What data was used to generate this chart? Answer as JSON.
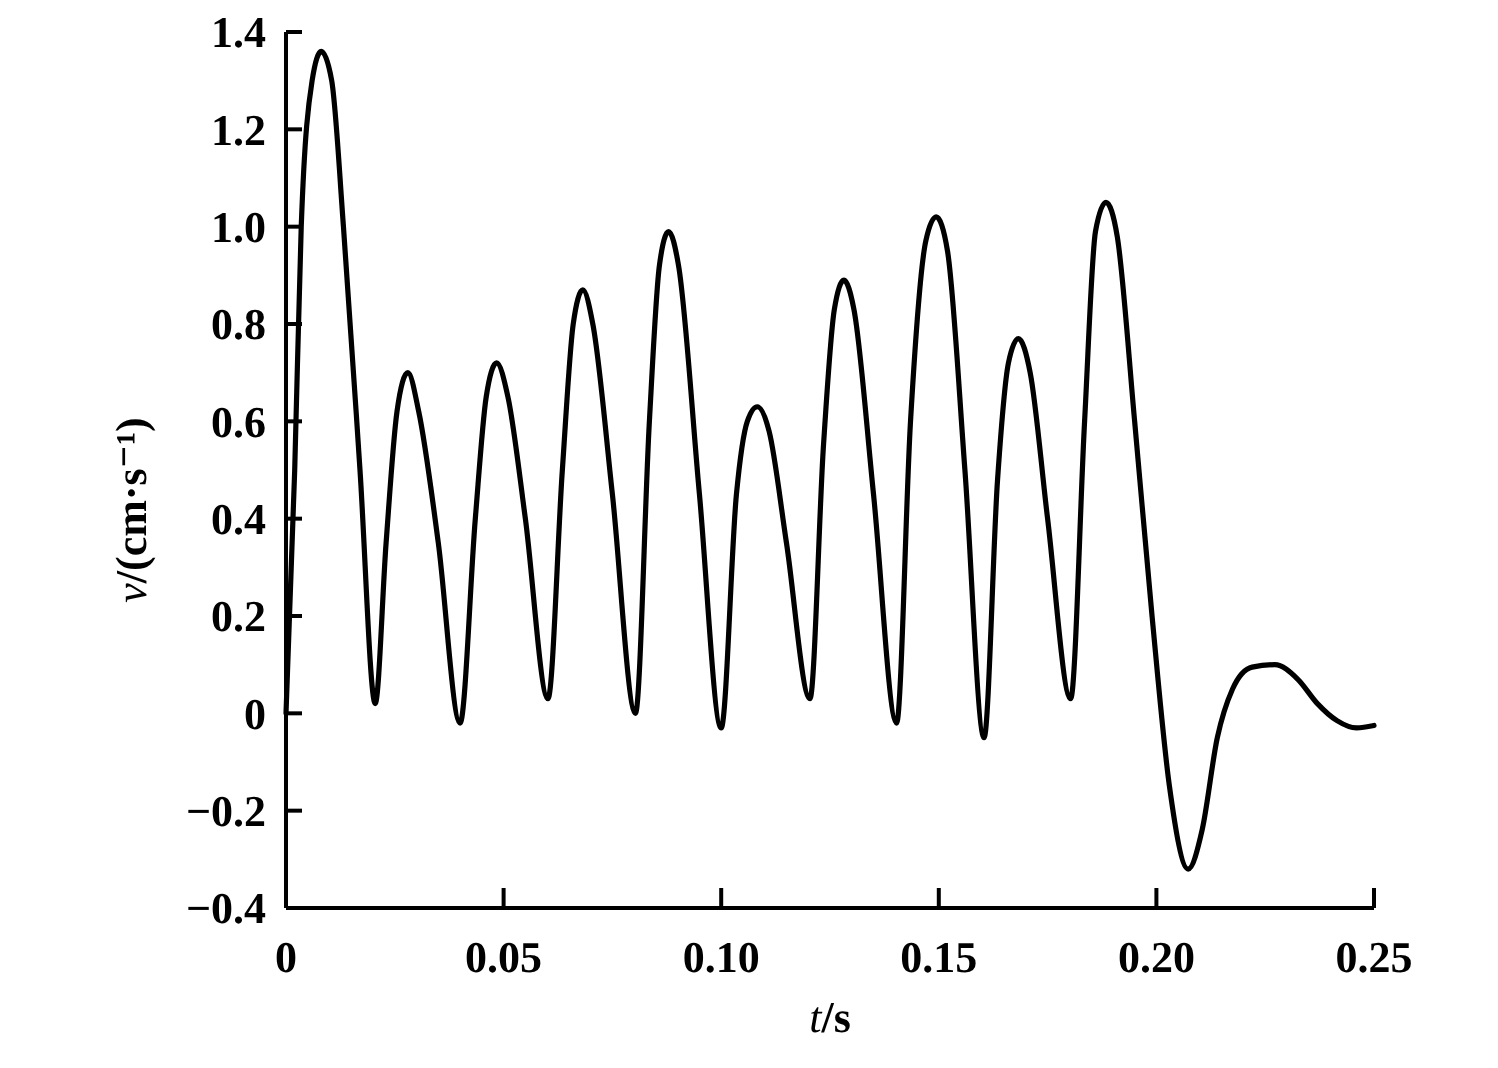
{
  "chart_data": {
    "type": "line",
    "xlabel": "t/s",
    "ylabel": "v/(cm·s⁻¹)",
    "xlim": [
      0,
      0.25
    ],
    "xticks": [
      0,
      0.05,
      {
        "value": 0.1,
        "label": "0.10"
      },
      0.15,
      {
        "value": 0.2,
        "label": "0.20"
      },
      0.25
    ],
    "ylim": [
      -0.4,
      1.4
    ],
    "yticks": [
      {
        "value": -0.4,
        "label": "−0.4"
      },
      {
        "value": -0.2,
        "label": "−0.2"
      },
      0,
      0.2,
      0.4,
      0.6,
      0.8,
      {
        "value": 1,
        "label": "1.0"
      },
      1.2,
      1.4
    ],
    "series": [
      {
        "color": "#000000",
        "x": [
          0,
          0.002,
          0.0035,
          0.006,
          0.0081,
          0.0105,
          0.0132,
          0.017,
          0.0205,
          0.023,
          0.0255,
          0.028,
          0.0305,
          0.035,
          0.04,
          0.0435,
          0.046,
          0.0484,
          0.051,
          0.055,
          0.0602,
          0.0635,
          0.066,
          0.0682,
          0.0705,
          0.075,
          0.0803,
          0.0835,
          0.0858,
          0.0879,
          0.0902,
          0.095,
          0.1,
          0.1035,
          0.106,
          0.1083,
          0.111,
          0.115,
          0.1204,
          0.1235,
          0.126,
          0.1282,
          0.1305,
          0.135,
          0.1403,
          0.1435,
          0.147,
          0.1494,
          0.152,
          0.156,
          0.1604,
          0.1635,
          0.166,
          0.1683,
          0.171,
          0.175,
          0.1803,
          0.1835,
          0.186,
          0.1884,
          0.191,
          0.195,
          0.199,
          0.203,
          0.2073,
          0.2105,
          0.214,
          0.2175,
          0.222,
          0.2272,
          0.2325,
          0.237,
          0.2415,
          0.246,
          0.25
        ],
        "values": [
          0,
          0.5,
          1.0,
          1.3,
          1.36,
          1.3,
          1.0,
          0.5,
          0.02,
          0.35,
          0.62,
          0.7,
          0.62,
          0.35,
          -0.02,
          0.4,
          0.65,
          0.72,
          0.65,
          0.4,
          0.03,
          0.5,
          0.8,
          0.87,
          0.8,
          0.45,
          0,
          0.6,
          0.92,
          0.99,
          0.92,
          0.45,
          -0.03,
          0.45,
          0.6,
          0.63,
          0.58,
          0.35,
          0.03,
          0.55,
          0.83,
          0.89,
          0.83,
          0.45,
          -0.02,
          0.6,
          0.97,
          1.02,
          0.95,
          0.5,
          -0.05,
          0.48,
          0.72,
          0.77,
          0.7,
          0.4,
          0.03,
          0.6,
          0.99,
          1.05,
          0.98,
          0.6,
          0.2,
          -0.15,
          -0.32,
          -0.24,
          -0.05,
          0.05,
          0.095,
          0.1,
          0.07,
          0.02,
          -0.015,
          -0.03,
          -0.025
        ]
      }
    ]
  }
}
